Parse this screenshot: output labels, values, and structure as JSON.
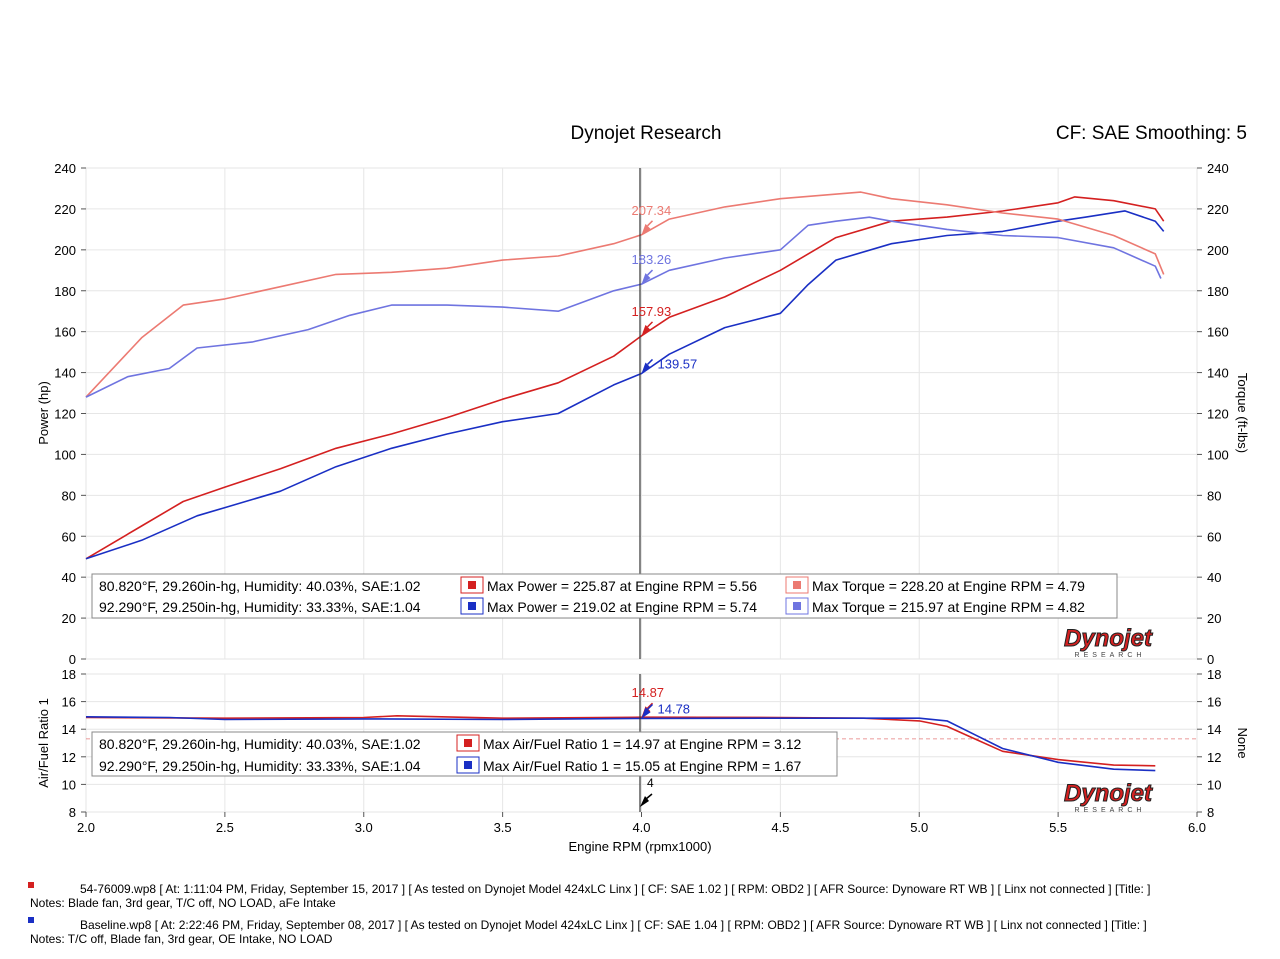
{
  "header": {
    "title": "Dynojet Research",
    "cf_smoothing": "CF: SAE Smoothing: 5"
  },
  "colors": {
    "run1": "#d42020",
    "run1_light": "#ec7a72",
    "run2": "#1a2fc4",
    "run2_light": "#6f74e0"
  },
  "chart_data": [
    {
      "type": "line",
      "title": "Dynojet Research",
      "xlabel": "Engine RPM (rpmx1000)",
      "ylabel": "Power (hp)",
      "y2label": "Torque (ft-lbs)",
      "xlim": [
        2.0,
        6.0
      ],
      "ylim": [
        0,
        240
      ],
      "y_ticks": [
        0,
        20,
        40,
        60,
        80,
        100,
        120,
        140,
        160,
        180,
        200,
        220,
        240
      ],
      "cursor_x": 4.0,
      "series": [
        {
          "name": "Power run 1",
          "color": "#d42020",
          "x": [
            2.0,
            2.2,
            2.35,
            2.5,
            2.7,
            2.9,
            3.1,
            3.3,
            3.5,
            3.7,
            3.9,
            4.0,
            4.1,
            4.3,
            4.5,
            4.7,
            4.9,
            5.1,
            5.3,
            5.5,
            5.56,
            5.7,
            5.85,
            5.88
          ],
          "values": [
            49,
            65,
            77,
            84,
            93,
            103,
            110,
            118,
            127,
            135,
            148,
            158,
            167,
            177,
            190,
            206,
            214,
            216,
            219,
            223,
            225.87,
            224,
            220,
            214
          ]
        },
        {
          "name": "Power run 2",
          "color": "#1a2fc4",
          "x": [
            2.0,
            2.2,
            2.4,
            2.5,
            2.7,
            2.9,
            3.1,
            3.3,
            3.5,
            3.7,
            3.9,
            4.0,
            4.1,
            4.3,
            4.5,
            4.6,
            4.7,
            4.9,
            5.1,
            5.3,
            5.5,
            5.6,
            5.74,
            5.85,
            5.88
          ],
          "values": [
            49,
            58,
            70,
            74,
            82,
            94,
            103,
            110,
            116,
            120,
            134,
            139.57,
            149,
            162,
            169,
            183,
            195,
            203,
            207,
            209,
            214,
            216,
            219.02,
            214,
            209
          ]
        },
        {
          "name": "Torque run 1",
          "color": "#ec7a72",
          "x": [
            2.0,
            2.2,
            2.35,
            2.5,
            2.7,
            2.9,
            3.1,
            3.3,
            3.5,
            3.7,
            3.9,
            4.0,
            4.1,
            4.3,
            4.5,
            4.79,
            4.9,
            5.1,
            5.3,
            5.5,
            5.7,
            5.85,
            5.88
          ],
          "values": [
            128,
            157,
            173,
            176,
            182,
            188,
            189,
            191,
            195,
            197,
            203,
            207.34,
            215,
            221,
            225,
            228.2,
            225,
            222,
            218,
            215,
            207,
            198,
            188
          ]
        },
        {
          "name": "Torque run 2",
          "color": "#6f74e0",
          "x": [
            2.0,
            2.15,
            2.3,
            2.4,
            2.6,
            2.8,
            2.95,
            3.1,
            3.3,
            3.5,
            3.7,
            3.9,
            4.0,
            4.1,
            4.3,
            4.5,
            4.6,
            4.7,
            4.82,
            4.9,
            5.1,
            5.3,
            5.5,
            5.7,
            5.85,
            5.87
          ],
          "values": [
            128,
            138,
            142,
            152,
            155,
            161,
            168,
            173,
            173,
            172,
            170,
            180,
            183.26,
            190,
            196,
            200,
            212,
            214,
            215.97,
            214,
            210,
            207,
            206,
            201,
            192,
            186
          ]
        }
      ],
      "cursor_labels": [
        {
          "text": "207.34",
          "x": 4.0,
          "y": 207.34,
          "color": "#ec7a72"
        },
        {
          "text": "183.26",
          "x": 4.0,
          "y": 183.26,
          "color": "#6f74e0"
        },
        {
          "text": "157.93",
          "x": 4.0,
          "y": 157.93,
          "color": "#d42020"
        },
        {
          "text": "139.57",
          "x": 4.0,
          "y": 139.57,
          "color": "#1a2fc4"
        }
      ],
      "legend": [
        {
          "conditions": "80.820°F, 29.260in-hg, Humidity: 40.03%, SAE:1.02",
          "max_power": "Max Power = 225.87 at Engine RPM = 5.56",
          "max_torque": "Max Torque = 228.20 at Engine RPM = 4.79"
        },
        {
          "conditions": "92.290°F, 29.250in-hg, Humidity: 33.33%, SAE:1.04",
          "max_power": "Max Power = 219.02 at Engine RPM = 5.74",
          "max_torque": "Max Torque = 215.97 at Engine RPM = 4.82"
        }
      ],
      "watermark": "Dynojet",
      "watermark_sub": "RESEARCH"
    },
    {
      "type": "line",
      "ylabel": "Air/Fuel Ratio 1",
      "y2label": "None",
      "xlim": [
        2.0,
        6.0
      ],
      "ylim": [
        8,
        18
      ],
      "y_ticks": [
        8,
        10,
        12,
        14,
        16,
        18
      ],
      "x_ticks": [
        "2.0",
        "2.5",
        "3.0",
        "3.5",
        "4.0",
        "4.5",
        "5.0",
        "5.5",
        "6.0"
      ],
      "xlabel": "Engine RPM (rpmx1000)",
      "reference_line": 13.3,
      "series": [
        {
          "name": "AFR run 1",
          "color": "#d42020",
          "x": [
            2.0,
            2.5,
            3.0,
            3.12,
            3.5,
            4.0,
            4.5,
            4.8,
            5.0,
            5.1,
            5.2,
            5.3,
            5.5,
            5.7,
            5.85
          ],
          "values": [
            14.85,
            14.8,
            14.85,
            14.97,
            14.8,
            14.87,
            14.85,
            14.8,
            14.6,
            14.2,
            13.3,
            12.4,
            11.8,
            11.4,
            11.35
          ]
        },
        {
          "name": "AFR run 2",
          "color": "#1a2fc4",
          "x": [
            2.0,
            2.3,
            2.5,
            3.0,
            3.5,
            4.0,
            4.5,
            4.8,
            5.0,
            5.1,
            5.2,
            5.3,
            5.5,
            5.7,
            5.85
          ],
          "values": [
            14.9,
            14.85,
            14.7,
            14.75,
            14.7,
            14.78,
            14.8,
            14.8,
            14.8,
            14.6,
            13.6,
            12.6,
            11.6,
            11.1,
            11.0
          ]
        }
      ],
      "cursor_labels": [
        {
          "text": "14.87",
          "x": 4.0,
          "y": 14.87,
          "color": "#d42020"
        },
        {
          "text": "14.78",
          "x": 4.0,
          "y": 14.78,
          "color": "#1a2fc4"
        }
      ],
      "cursor_marker": "4",
      "legend": [
        {
          "conditions": "80.820°F, 29.260in-hg, Humidity: 40.03%, SAE:1.02",
          "max_afr": "Max Air/Fuel Ratio 1 = 14.97 at Engine RPM = 3.12"
        },
        {
          "conditions": "92.290°F, 29.250in-hg, Humidity: 33.33%, SAE:1.04",
          "max_afr": "Max Air/Fuel Ratio 1 = 15.05 at Engine RPM = 1.67"
        }
      ],
      "watermark": "Dynojet",
      "watermark_sub": "RESEARCH"
    }
  ],
  "notes": [
    {
      "line1": "54-76009.wp8 [ At: 1:11:04 PM, Friday, September 15, 2017 ] [ As tested on Dynojet Model 424xLC Linx ] [ CF: SAE 1.02 ] [ RPM: OBD2 ] [ AFR Source: Dynoware RT WB ] [ Linx not connected ] [Title: ]",
      "line2": "Notes: Blade fan, 3rd gear, T/C off, NO LOAD, aFe Intake"
    },
    {
      "line1": "Baseline.wp8 [ At: 2:22:46 PM, Friday, September 08, 2017 ] [ As tested on Dynojet Model 424xLC Linx ] [ CF: SAE 1.04 ] [ RPM: OBD2 ] [ AFR Source: Dynoware RT WB ] [ Linx not connected ] [Title: ]",
      "line2": "Notes: T/C off, Blade fan, 3rd gear, OE Intake, NO LOAD"
    }
  ]
}
